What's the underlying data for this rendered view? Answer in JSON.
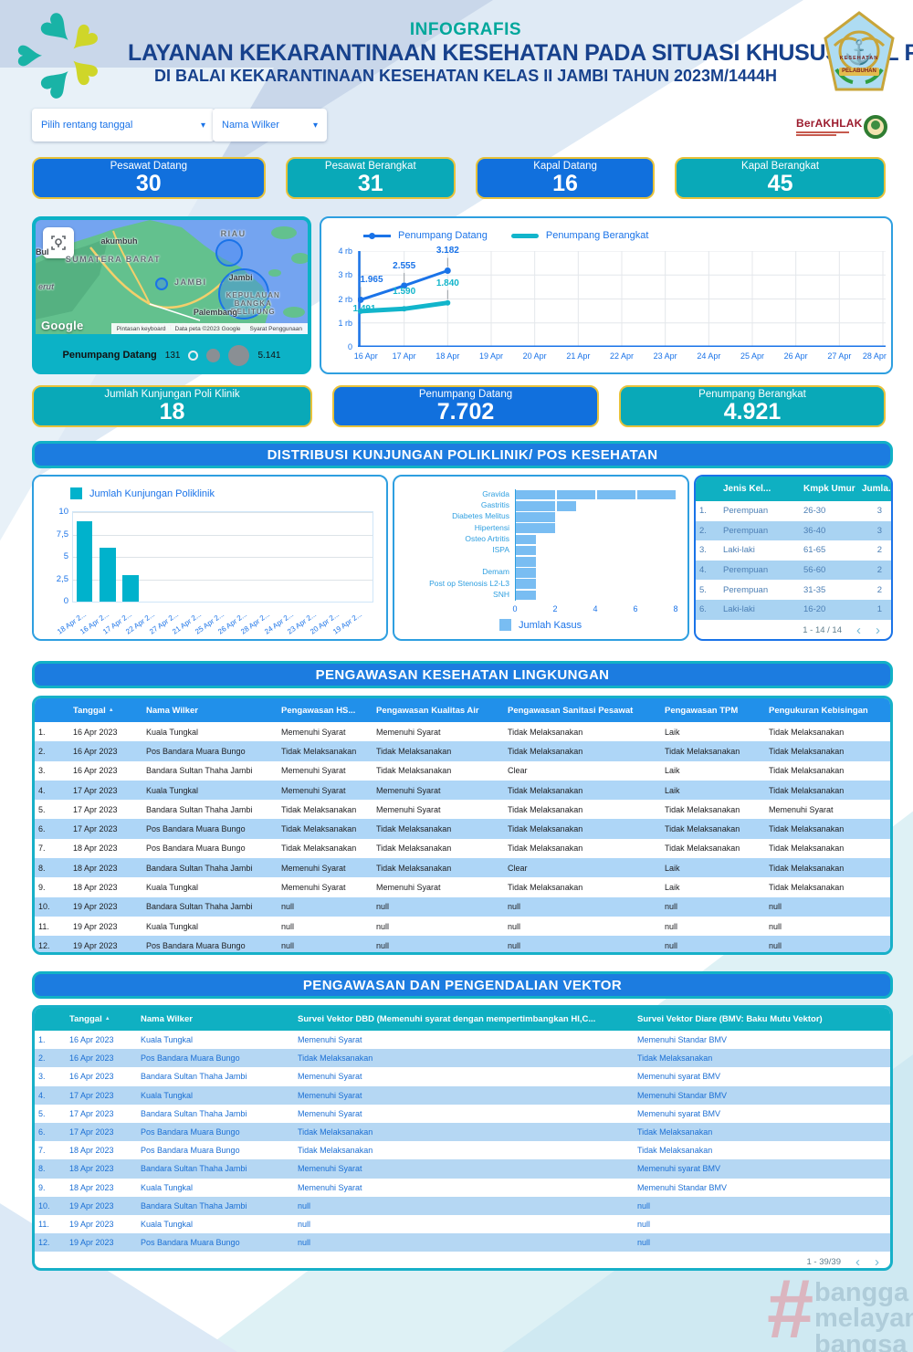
{
  "header": {
    "kicker": "INFOGRAFIS",
    "title": "LAYANAN KEKARANTINAAN KESEHATAN PADA SITUASI KHUSUS IDUL FITRI",
    "subtitle": "DI BALAI KEKARANTINAAN KESEHATAN KELAS II JAMBI TAHUN 2023M/1444H",
    "badge": {
      "top": "KESEHATAN",
      "bottom": "PELABUHAN"
    },
    "berakhlak": "BerAKHLAK"
  },
  "icons": {
    "caret": "▾",
    "sort": "▲",
    "prev": "‹",
    "next": "›"
  },
  "filters": {
    "date_range": "Pilih rentang tanggal",
    "wilker": "Nama Wilker"
  },
  "kpis_top": [
    {
      "label": "Pesawat Datang",
      "value": "30",
      "color": "blue"
    },
    {
      "label": "Pesawat Berangkat",
      "value": "31",
      "color": "teal"
    },
    {
      "label": "Kapal Datang",
      "value": "16",
      "color": "blue"
    },
    {
      "label": "Kapal Berangkat",
      "value": "45",
      "color": "teal"
    }
  ],
  "kpis_mid": [
    {
      "label": "Jumlah Kunjungan Poli Klinik",
      "value": "18",
      "color": "teal"
    },
    {
      "label": "Penumpang Datang",
      "value": "7.702",
      "color": "blue"
    },
    {
      "label": "Penumpang Berangkat",
      "value": "4.921",
      "color": "teal"
    }
  ],
  "map": {
    "region_labels": [
      "RIAU",
      "SUMATERA BARAT",
      "JAMBI",
      "KEPULAUAN\nBANGKA\nBELITUNG",
      "SUMATERA"
    ],
    "city_labels": [
      "akumbuh",
      "Jambi",
      "Palembang",
      "erut",
      "Bul"
    ],
    "google": "Google",
    "attribution": [
      "Pintasan keyboard",
      "Data peta ©2023 Google",
      "Syarat Penggunaan"
    ],
    "legend": {
      "label": "Penumpang Datang",
      "min": "131",
      "max": "5.141"
    }
  },
  "sections": {
    "distribusi": "DISTRIBUSI KUNJUNGAN POLIKLINIK/ POS KESEHATAN",
    "lingkungan": "PENGAWASAN KESEHATAN LINGKUNGAN",
    "vektor": "PENGAWASAN DAN PENGENDALIAN VEKTOR"
  },
  "chart_data": [
    {
      "type": "line",
      "x": [
        "16 Apr",
        "17 Apr",
        "18 Apr",
        "19 Apr",
        "20 Apr",
        "21 Apr",
        "22 Apr",
        "23 Apr",
        "24 Apr",
        "25 Apr",
        "26 Apr",
        "27 Apr",
        "28 Apr"
      ],
      "series": [
        {
          "name": "Penumpang Datang",
          "color": "#1a73e8",
          "width": 3,
          "marker": 3.5,
          "values": [
            1965,
            2555,
            3182,
            null,
            null,
            null,
            null,
            null,
            null,
            null,
            null,
            null,
            null
          ],
          "labels": [
            "1.965",
            "2.555",
            "3.182"
          ]
        },
        {
          "name": "Penumpang Berangkat",
          "color": "#12b5cb",
          "width": 5,
          "marker": 3,
          "values": [
            1491,
            1590,
            1840,
            null,
            null,
            null,
            null,
            null,
            null,
            null,
            null,
            null,
            null
          ],
          "labels": [
            "1.491",
            "1.590",
            "1.840"
          ]
        }
      ],
      "ylim": [
        0,
        4000
      ],
      "yticks": [
        "0",
        "1 rb",
        "2 rb",
        "3 rb",
        "4 rb"
      ],
      "grid": true,
      "legend_position": "top"
    },
    {
      "type": "bar",
      "legend": "Jumlah Kunjungan Poliklinik",
      "categories": [
        "18 Apr 2...",
        "16 Apr 2...",
        "17 Apr 2...",
        "22 Apr 2...",
        "27 Apr 2...",
        "21 Apr 2...",
        "25 Apr 2...",
        "26 Apr 2...",
        "28 Apr 2...",
        "24 Apr 2...",
        "23 Apr 2...",
        "20 Apr 2...",
        "19 Apr 2..."
      ],
      "values": [
        9,
        6,
        3,
        0,
        0,
        0,
        0,
        0,
        0,
        0,
        0,
        0,
        0
      ],
      "ylim": [
        0,
        10
      ],
      "yticks": [
        "0",
        "2,5",
        "5",
        "7,5",
        "10"
      ],
      "bar_color": "#00b2cc",
      "grid": true
    },
    {
      "type": "bar-horizontal",
      "legend": "Jumlah Kasus",
      "categories": [
        "Gravida",
        "Gastritis",
        "Diabetes Melitus",
        "Hipertensi",
        "Osteo Artritis",
        "ISPA",
        "",
        "Demam",
        "Post op Stenosis L2-L3",
        "SNH"
      ],
      "values": [
        8,
        3,
        2,
        2,
        1,
        1,
        1,
        1,
        1,
        1
      ],
      "xlim": [
        0,
        8
      ],
      "xticks": [
        "0",
        "2",
        "4",
        "6",
        "8"
      ],
      "bar_color": "#79bdf2",
      "grid": true
    }
  ],
  "gender_table": {
    "headers": [
      "Jenis Kel...",
      "Kmpk Umur",
      "Jumla..."
    ],
    "rows": [
      [
        "Perempuan",
        "26-30",
        "3"
      ],
      [
        "Perempuan",
        "36-40",
        "3"
      ],
      [
        "Laki-laki",
        "61-65",
        "2"
      ],
      [
        "Perempuan",
        "56-60",
        "2"
      ],
      [
        "Perempuan",
        "31-35",
        "2"
      ],
      [
        "Laki-laki",
        "16-20",
        "1"
      ]
    ],
    "pagination": "1 - 14 / 14"
  },
  "lingkungan_table": {
    "headers": [
      "",
      "Tanggal",
      "Nama Wilker",
      "Pengawasan HS...",
      "Pengawasan Kualitas Air",
      "Pengawasan Sanitasi Pesawat",
      "Pengawasan TPM",
      "Pengukuran Kebisingan"
    ],
    "rows": [
      [
        "16 Apr 2023",
        "Kuala Tungkal",
        "Memenuhi Syarat",
        "Memenuhi Syarat",
        "Tidak Melaksanakan",
        "Laik",
        "Tidak Melaksanakan"
      ],
      [
        "16 Apr 2023",
        "Pos Bandara Muara Bungo",
        "Tidak Melaksanakan",
        "Tidak Melaksanakan",
        "Tidak Melaksanakan",
        "Tidak Melaksanakan",
        "Tidak Melaksanakan"
      ],
      [
        "16 Apr 2023",
        "Bandara Sultan Thaha Jambi",
        "Memenuhi Syarat",
        "Tidak Melaksanakan",
        "Clear",
        "Laik",
        "Tidak Melaksanakan"
      ],
      [
        "17 Apr 2023",
        "Kuala Tungkal",
        "Memenuhi Syarat",
        "Memenuhi Syarat",
        "Tidak Melaksanakan",
        "Laik",
        "Tidak Melaksanakan"
      ],
      [
        "17 Apr 2023",
        "Bandara Sultan Thaha Jambi",
        "Tidak Melaksanakan",
        "Memenuhi Syarat",
        "Tidak Melaksanakan",
        "Tidak Melaksanakan",
        "Memenuhi Syarat"
      ],
      [
        "17 Apr 2023",
        "Pos Bandara Muara Bungo",
        "Tidak Melaksanakan",
        "Tidak Melaksanakan",
        "Tidak Melaksanakan",
        "Tidak Melaksanakan",
        "Tidak Melaksanakan"
      ],
      [
        "18 Apr 2023",
        "Pos Bandara Muara Bungo",
        "Tidak Melaksanakan",
        "Tidak Melaksanakan",
        "Tidak Melaksanakan",
        "Tidak Melaksanakan",
        "Tidak Melaksanakan"
      ],
      [
        "18 Apr 2023",
        "Bandara Sultan Thaha Jambi",
        "Memenuhi Syarat",
        "Tidak Melaksanakan",
        "Clear",
        "Laik",
        "Tidak Melaksanakan"
      ],
      [
        "18 Apr 2023",
        "Kuala Tungkal",
        "Memenuhi Syarat",
        "Memenuhi Syarat",
        "Tidak Melaksanakan",
        "Laik",
        "Tidak Melaksanakan"
      ],
      [
        "19 Apr 2023",
        "Bandara Sultan Thaha Jambi",
        "null",
        "null",
        "null",
        "null",
        "null"
      ],
      [
        "19 Apr 2023",
        "Kuala Tungkal",
        "null",
        "null",
        "null",
        "null",
        "null"
      ],
      [
        "19 Apr 2023",
        "Pos Bandara Muara Bungo",
        "null",
        "null",
        "null",
        "null",
        "null"
      ]
    ]
  },
  "vektor_table": {
    "headers": [
      "",
      "Tanggal",
      "Nama Wilker",
      "Survei Vektor DBD (Memenuhi syarat dengan mempertimbangkan HI,C...",
      "Survei Vektor Diare (BMV: Baku Mutu Vektor)"
    ],
    "rows": [
      [
        "16 Apr 2023",
        "Kuala Tungkal",
        "Memenuhi Syarat",
        "Memenuhi Standar BMV"
      ],
      [
        "16 Apr 2023",
        "Pos Bandara Muara Bungo",
        "Tidak Melaksanakan",
        "Tidak Melaksanakan"
      ],
      [
        "16 Apr 2023",
        "Bandara Sultan Thaha Jambi",
        "Memenuhi Syarat",
        "Memenuhi syarat BMV"
      ],
      [
        "17 Apr 2023",
        "Kuala Tungkal",
        "Memenuhi Syarat",
        "Memenuhi Standar BMV"
      ],
      [
        "17 Apr 2023",
        "Bandara Sultan Thaha Jambi",
        "Memenuhi Syarat",
        "Memenuhi syarat BMV"
      ],
      [
        "17 Apr 2023",
        "Pos Bandara Muara Bungo",
        "Tidak Melaksanakan",
        "Tidak Melaksanakan"
      ],
      [
        "18 Apr 2023",
        "Pos Bandara Muara Bungo",
        "Tidak Melaksanakan",
        "Tidak Melaksanakan"
      ],
      [
        "18 Apr 2023",
        "Bandara Sultan Thaha Jambi",
        "Memenuhi Syarat",
        "Memenuhi syarat BMV"
      ],
      [
        "18 Apr 2023",
        "Kuala Tungkal",
        "Memenuhi Syarat",
        "Memenuhi Standar BMV"
      ],
      [
        "19 Apr 2023",
        "Bandara Sultan Thaha Jambi",
        "null",
        "null"
      ],
      [
        "19 Apr 2023",
        "Kuala Tungkal",
        "null",
        "null"
      ],
      [
        "19 Apr 2023",
        "Pos Bandara Muara Bungo",
        "null",
        "null"
      ]
    ],
    "pagination": "1 - 39/39"
  },
  "watermark": {
    "hash": "#",
    "lines": [
      "bangga",
      "melayani",
      "bangsa"
    ]
  },
  "colors": {
    "kpi_blue": "#1170dd",
    "kpi_teal": "#09a9b8",
    "kpi_border": "#e7c23a",
    "section_blue": "#1c7ce0",
    "section_border": "#12b1c6",
    "table_header_blue": "#2190ea",
    "table_header_teal": "#0fb0c2",
    "row_alt": "#aed6f7",
    "line_datang": "#1a73e8",
    "line_berangkat": "#12b5cb",
    "bar_teal": "#00b2cc",
    "hbar_blue": "#79bdf2",
    "title_navy": "#17418c",
    "kicker_teal": "#00a79b"
  }
}
